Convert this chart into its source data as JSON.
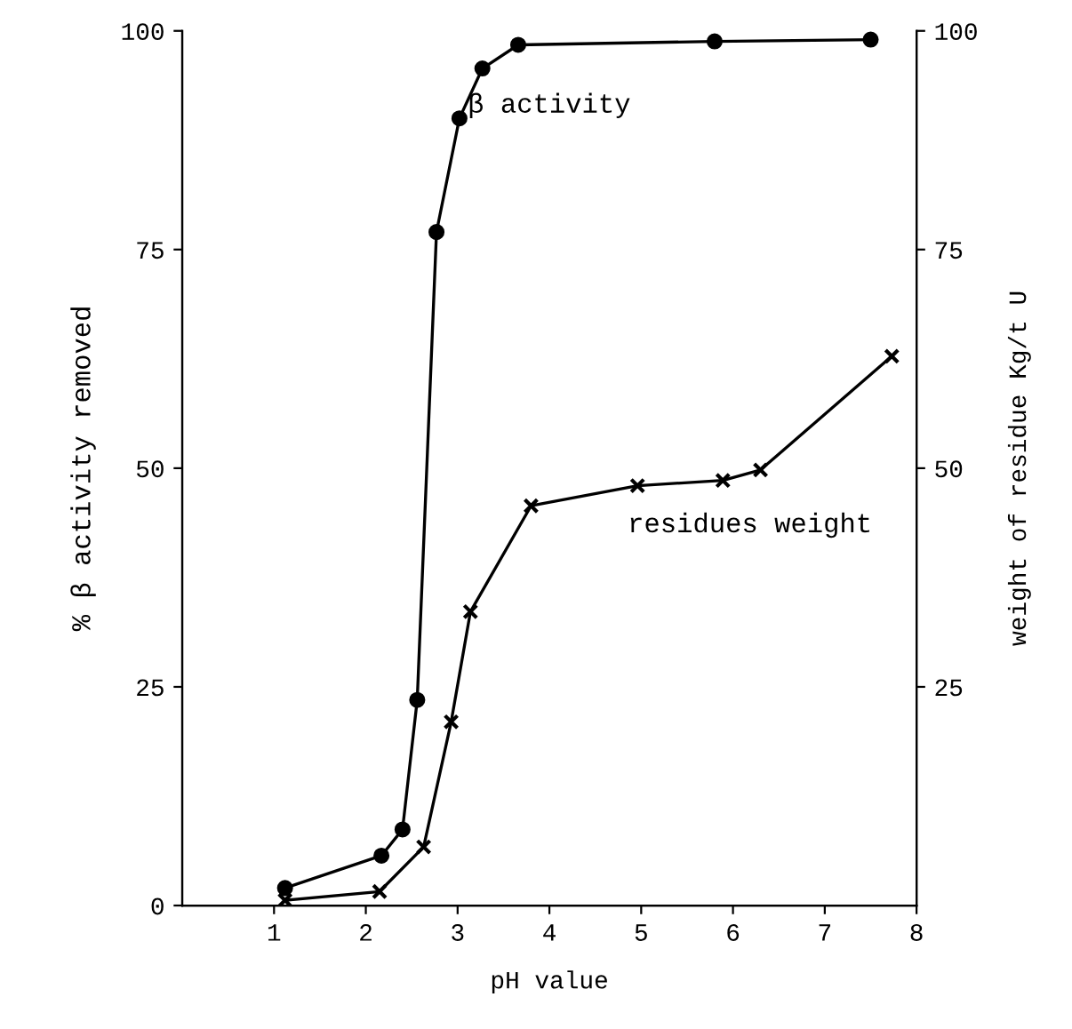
{
  "chart_data": {
    "type": "line",
    "xlabel": "pH value",
    "ylabel": "% β activity removed",
    "y2label": "weight of residue Kg/t U",
    "xlim": [
      0,
      8
    ],
    "xticks": [
      1,
      2,
      3,
      4,
      5,
      6,
      7,
      8
    ],
    "ylim": [
      0,
      100
    ],
    "yticks": [
      0,
      25,
      50,
      75,
      100
    ],
    "y2lim": [
      0,
      100
    ],
    "y2ticks": [
      25,
      50,
      75,
      100
    ],
    "grid": false,
    "legend": false,
    "line_style": "solid",
    "series": [
      {
        "name": "β activity",
        "color": "#000000",
        "marker": "circle",
        "x": [
          1.12,
          2.17,
          2.4,
          2.56,
          2.77,
          3.02,
          3.27,
          3.66,
          5.8,
          7.5
        ],
        "values": [
          2,
          5.7,
          8.7,
          23.5,
          77,
          90,
          95.7,
          98.4,
          98.8,
          99
        ]
      },
      {
        "name": "residues weight",
        "color": "#000000",
        "marker": "cross",
        "x": [
          1.12,
          2.15,
          2.63,
          2.93,
          3.14,
          3.8,
          4.96,
          5.89,
          6.3,
          7.73
        ],
        "values": [
          0.6,
          1.6,
          6.7,
          21,
          33.6,
          45.7,
          48,
          48.6,
          49.8,
          62.8
        ]
      }
    ]
  }
}
